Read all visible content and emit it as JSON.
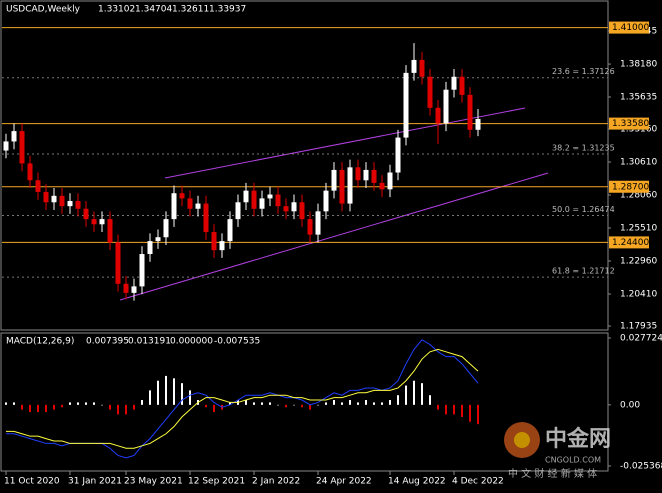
{
  "chart_data": {
    "type": "candlestick",
    "title": "USDCAD,Weekly",
    "categories": [
      "11 Oct 2020",
      null,
      null,
      null,
      null,
      null,
      null,
      null,
      "31 Jan 2021",
      null,
      null,
      null,
      null,
      null,
      null,
      "23 May 2021",
      null,
      null,
      null,
      null,
      null,
      null,
      null,
      "12 Sep 2021",
      null,
      null,
      null,
      null,
      null,
      null,
      null,
      "2 Jan 2022",
      null,
      null,
      null,
      null,
      null,
      null,
      null,
      "24 Apr 2022",
      null,
      null,
      null,
      null,
      null,
      null,
      null,
      null,
      "14 Aug 2022",
      null,
      null,
      null,
      null,
      null,
      null,
      null,
      "4 Dec 2022",
      null,
      null,
      null
    ],
    "open": [
      1.315,
      1.322,
      1.33,
      1.305,
      1.292,
      1.283,
      1.275,
      1.28,
      1.272,
      1.276,
      1.27,
      1.262,
      1.258,
      1.262,
      1.244,
      1.212,
      1.205,
      1.21,
      1.235,
      1.245,
      1.248,
      1.262,
      1.282,
      1.278,
      1.27,
      1.274,
      1.252,
      1.238,
      1.245,
      1.262,
      1.275,
      1.284,
      1.27,
      1.278,
      1.281,
      1.272,
      1.268,
      1.275,
      1.262,
      1.25,
      1.268,
      1.284,
      1.3,
      1.274,
      1.302,
      1.292,
      1.3,
      1.29,
      1.285,
      1.298,
      1.325,
      1.375,
      1.385,
      1.372,
      1.348,
      1.336,
      1.362,
      1.372,
      1.358,
      1.33102
    ],
    "high": [
      1.328,
      1.336,
      1.336,
      1.311,
      1.298,
      1.289,
      1.286,
      1.286,
      1.282,
      1.282,
      1.276,
      1.268,
      1.268,
      1.268,
      1.25,
      1.218,
      1.216,
      1.241,
      1.251,
      1.254,
      1.268,
      1.288,
      1.288,
      1.284,
      1.28,
      1.28,
      1.258,
      1.251,
      1.268,
      1.281,
      1.29,
      1.29,
      1.284,
      1.287,
      1.287,
      1.278,
      1.281,
      1.281,
      1.268,
      1.274,
      1.29,
      1.306,
      1.306,
      1.308,
      1.308,
      1.306,
      1.306,
      1.296,
      1.304,
      1.331,
      1.381,
      1.398,
      1.391,
      1.378,
      1.354,
      1.368,
      1.378,
      1.378,
      1.364,
      1.34704
    ],
    "low": [
      1.309,
      1.316,
      1.299,
      1.286,
      1.277,
      1.269,
      1.269,
      1.266,
      1.266,
      1.264,
      1.256,
      1.252,
      1.252,
      1.238,
      1.206,
      1.2,
      1.199,
      1.204,
      1.229,
      1.239,
      1.242,
      1.256,
      1.272,
      1.264,
      1.264,
      1.246,
      1.232,
      1.232,
      1.239,
      1.256,
      1.269,
      1.264,
      1.264,
      1.272,
      1.266,
      1.262,
      1.262,
      1.256,
      1.244,
      1.244,
      1.262,
      1.278,
      1.268,
      1.268,
      1.286,
      1.286,
      1.284,
      1.279,
      1.279,
      1.292,
      1.319,
      1.369,
      1.366,
      1.342,
      1.32,
      1.33,
      1.356,
      1.352,
      1.325,
      1.32611
    ],
    "close": [
      1.322,
      1.33,
      1.305,
      1.292,
      1.283,
      1.275,
      1.28,
      1.272,
      1.276,
      1.27,
      1.262,
      1.258,
      1.262,
      1.244,
      1.212,
      1.205,
      1.21,
      1.235,
      1.245,
      1.248,
      1.262,
      1.282,
      1.278,
      1.27,
      1.274,
      1.252,
      1.238,
      1.245,
      1.262,
      1.275,
      1.284,
      1.27,
      1.278,
      1.281,
      1.272,
      1.268,
      1.275,
      1.262,
      1.25,
      1.268,
      1.284,
      1.3,
      1.274,
      1.302,
      1.292,
      1.3,
      1.29,
      1.285,
      1.298,
      1.325,
      1.375,
      1.385,
      1.372,
      1.348,
      1.336,
      1.362,
      1.372,
      1.358,
      1.331,
      1.33937
    ],
    "up_color": "#ffffff",
    "down_color": "#e00000",
    "ylim": [
      1.1763,
      1.4205
    ],
    "yticks": [
      {
        "value": 1.40745,
        "label": "1.40745"
      },
      {
        "value": 1.3818,
        "label": "1.38180"
      },
      {
        "value": 1.35635,
        "label": "1.35635"
      },
      {
        "value": 1.3316,
        "label": "1.33160"
      },
      {
        "value": 1.3061,
        "label": "1.30610"
      },
      {
        "value": 1.2806,
        "label": "1.28060"
      },
      {
        "value": 1.2551,
        "label": "1.25510"
      },
      {
        "value": 1.2296,
        "label": "1.22960"
      },
      {
        "value": 1.2041,
        "label": "1.20410"
      },
      {
        "value": 1.17935,
        "label": "1.17935"
      }
    ],
    "levels": [
      {
        "value": 1.41,
        "label": "1.41000"
      },
      {
        "value": 1.3358,
        "label": "1.33580"
      },
      {
        "value": 1.287,
        "label": "1.28700"
      },
      {
        "value": 1.244,
        "label": "1.24400"
      }
    ],
    "level_color": "#f5a623",
    "fib": [
      {
        "value": 1.37126,
        "label": "23.6 = 1.37126"
      },
      {
        "value": 1.31235,
        "label": "38.2 = 1.31235"
      },
      {
        "value": 1.26474,
        "label": "50.0 = 1.26474"
      },
      {
        "value": 1.21712,
        "label": "61.8 = 1.21712"
      }
    ],
    "indicator": {
      "name": "MACD(12,26,9)",
      "readings": [
        {
          "value": 0.007395,
          "label": "0.007395"
        },
        {
          "value": 0.013191,
          "label": "0.013191"
        },
        {
          "value": 0,
          "label": "0.000000"
        },
        {
          "value": -0.007535,
          "label": "-0.007535"
        }
      ],
      "ylim": [
        -0.02744,
        0.0298
      ],
      "yticks": [
        {
          "value": 0.027724,
          "label": "0.027724"
        },
        {
          "value": 0,
          "label": "0.00"
        },
        {
          "value": -0.025368,
          "label": "-0.025368"
        }
      ],
      "macd": {
        "color": "#1f3fff",
        "values": [
          -0.012,
          -0.012,
          -0.013,
          -0.014,
          -0.015,
          -0.016,
          -0.016,
          -0.017,
          -0.016,
          -0.016,
          -0.016,
          -0.016,
          -0.016,
          -0.018,
          -0.021,
          -0.022,
          -0.021,
          -0.017,
          -0.014,
          -0.01,
          -0.006,
          -0.002,
          0.002,
          0.004,
          0.005,
          0.004,
          0.001,
          -0.001,
          0.0,
          0.002,
          0.004,
          0.004,
          0.004,
          0.005,
          0.004,
          0.003,
          0.003,
          0.002,
          0.0,
          0.001,
          0.003,
          0.005,
          0.004,
          0.006,
          0.006,
          0.007,
          0.007,
          0.006,
          0.007,
          0.01,
          0.017,
          0.023,
          0.027,
          0.025,
          0.022,
          0.02,
          0.02,
          0.017,
          0.013,
          0.009
        ]
      },
      "signal": {
        "color": "#ffff40",
        "values": [
          -0.011,
          -0.011,
          -0.012,
          -0.013,
          -0.013,
          -0.014,
          -0.015,
          -0.015,
          -0.016,
          -0.016,
          -0.016,
          -0.016,
          -0.016,
          -0.016,
          -0.017,
          -0.018,
          -0.018,
          -0.017,
          -0.016,
          -0.014,
          -0.012,
          -0.009,
          -0.005,
          -0.002,
          0.001,
          0.003,
          0.003,
          0.002,
          0.001,
          0.001,
          0.002,
          0.003,
          0.003,
          0.004,
          0.004,
          0.004,
          0.003,
          0.003,
          0.002,
          0.002,
          0.002,
          0.003,
          0.003,
          0.004,
          0.005,
          0.005,
          0.006,
          0.006,
          0.006,
          0.007,
          0.01,
          0.014,
          0.019,
          0.022,
          0.023,
          0.022,
          0.021,
          0.02,
          0.017,
          0.014
        ]
      },
      "histogram": {
        "up_color": "#ffffff",
        "down_color": "#e00000",
        "values": [
          0.001,
          0.001,
          -0.002,
          -0.003,
          -0.003,
          -0.003,
          -0.002,
          -0.001,
          0.001,
          0.001,
          0.001,
          0.001,
          0.0,
          -0.002,
          -0.004,
          -0.004,
          -0.002,
          0.002,
          0.006,
          0.01,
          0.012,
          0.011,
          0.009,
          0.006,
          0.002,
          -0.001,
          -0.003,
          -0.002,
          0.001,
          0.002,
          0.002,
          0.001,
          0.001,
          0.001,
          0.0,
          -0.001,
          0.0,
          -0.001,
          -0.002,
          0.0,
          0.001,
          0.002,
          0.001,
          0.002,
          0.001,
          0.002,
          0.001,
          0.001,
          0.002,
          0.004,
          0.008,
          0.01,
          0.009,
          0.004,
          -0.002,
          -0.004,
          -0.004,
          -0.005,
          -0.007,
          -0.008
        ]
      }
    }
  },
  "watermark": {
    "brand": "中金网",
    "site": "CNGOLD.COM",
    "slogan": "中 文 财 经 新 媒 体"
  }
}
